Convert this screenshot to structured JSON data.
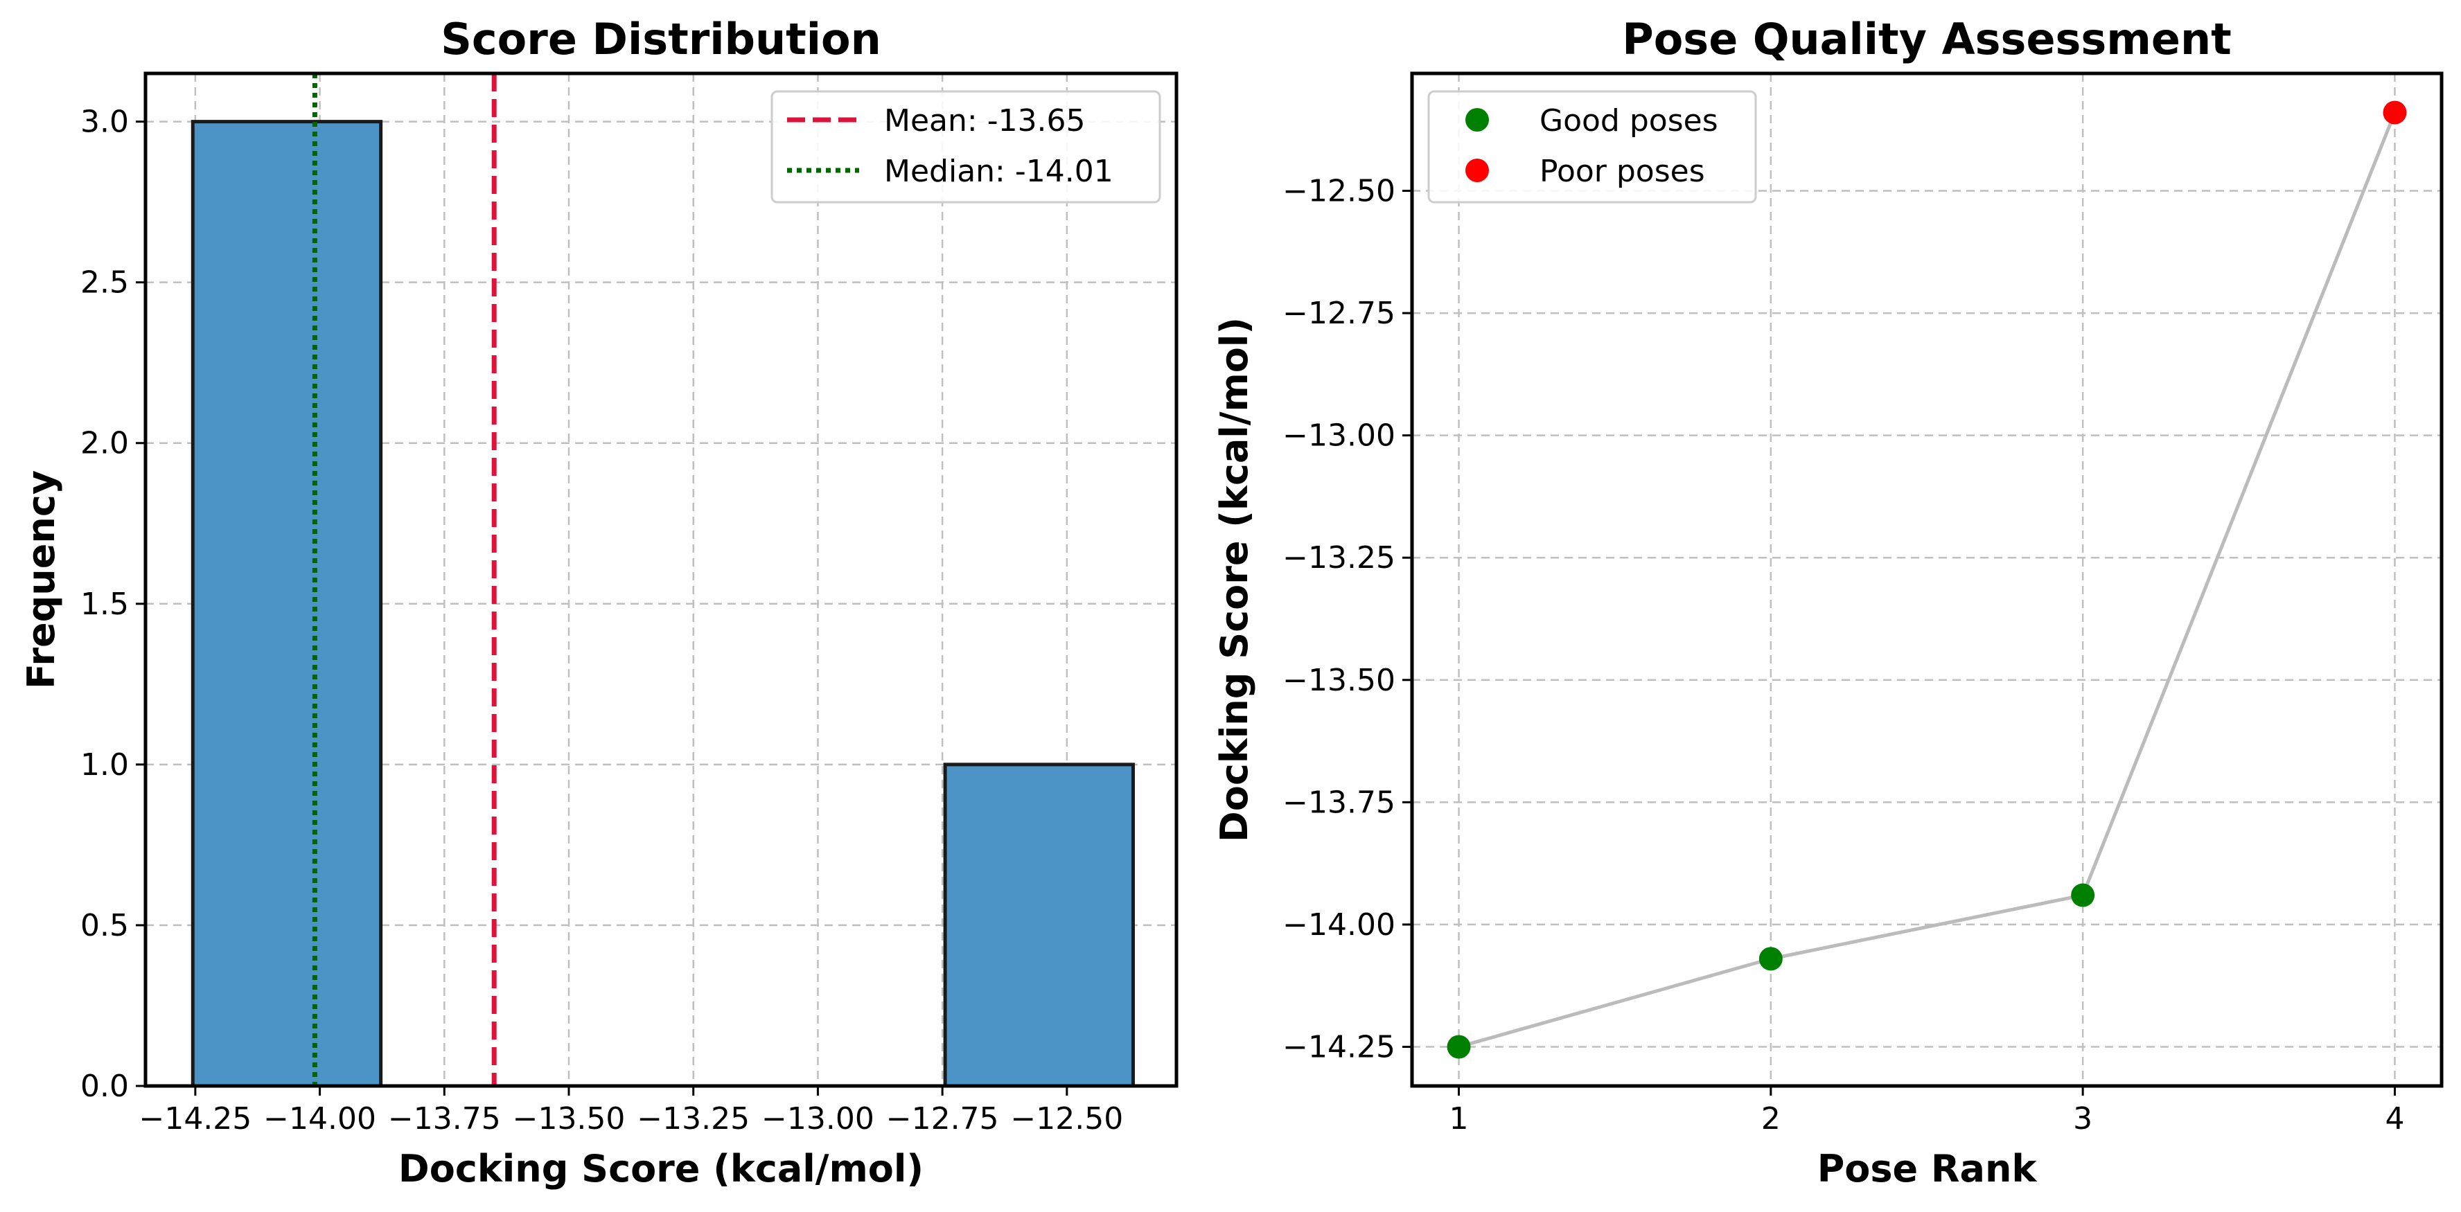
{
  "colors": {
    "bar": "#4c93c6",
    "bar_edge": "#1a1a1a",
    "mean": "#dc143c",
    "median": "#006400",
    "good": "#008000",
    "poor": "#ff0000",
    "connector": "#bbbbbb"
  },
  "chart_data": [
    {
      "type": "bar",
      "title": "Score Distribution",
      "xlabel": "Docking Score (kcal/mol)",
      "ylabel": "Frequency",
      "bins": [
        {
          "start": -14.255,
          "end": -13.8775,
          "count": 3
        },
        {
          "start": -12.7445,
          "end": -12.367,
          "count": 1
        }
      ],
      "xlim": [
        -14.35,
        -12.28
      ],
      "ylim": [
        0,
        3.15
      ],
      "xticks": [
        -14.25,
        -14.0,
        -13.75,
        -13.5,
        -13.25,
        -13.0,
        -12.75,
        -12.5
      ],
      "xtick_labels": [
        "−14.25",
        "−14.00",
        "−13.75",
        "−13.50",
        "−13.25",
        "−13.00",
        "−12.75",
        "−12.50"
      ],
      "yticks": [
        0.0,
        0.5,
        1.0,
        1.5,
        2.0,
        2.5,
        3.0
      ],
      "ytick_labels": [
        "0.0",
        "0.5",
        "1.0",
        "1.5",
        "2.0",
        "2.5",
        "3.0"
      ],
      "reference_lines": [
        {
          "name": "Mean: -13.65",
          "x": -13.65,
          "style": "dashed",
          "color": "#dc143c"
        },
        {
          "name": "Median: -14.01",
          "x": -14.01,
          "style": "dotted",
          "color": "#006400"
        }
      ],
      "grid": true,
      "legend_position": "top-right"
    },
    {
      "type": "scatter",
      "title": "Pose Quality Assessment",
      "xlabel": "Pose Rank",
      "ylabel": "Docking Score (kcal/mol)",
      "x": [
        1,
        2,
        3,
        4
      ],
      "y": [
        -14.25,
        -14.07,
        -13.94,
        -12.34
      ],
      "series": [
        {
          "name": "Good poses",
          "x": [
            1,
            2,
            3
          ],
          "y": [
            -14.25,
            -14.07,
            -13.94
          ],
          "color": "#008000"
        },
        {
          "name": "Poor poses",
          "x": [
            4
          ],
          "y": [
            -12.34
          ],
          "color": "#ff0000"
        }
      ],
      "connector_line": true,
      "xlim": [
        0.85,
        4.15
      ],
      "ylim": [
        -14.33,
        -12.26
      ],
      "xticks": [
        1,
        2,
        3,
        4
      ],
      "xtick_labels": [
        "1",
        "2",
        "3",
        "4"
      ],
      "yticks": [
        -14.25,
        -14.0,
        -13.75,
        -13.5,
        -13.25,
        -13.0,
        -12.75,
        -12.5
      ],
      "ytick_labels": [
        "−14.25",
        "−14.00",
        "−13.75",
        "−13.50",
        "−13.25",
        "−13.00",
        "−12.75",
        "−12.50"
      ],
      "grid": true,
      "legend_position": "top-left"
    }
  ]
}
